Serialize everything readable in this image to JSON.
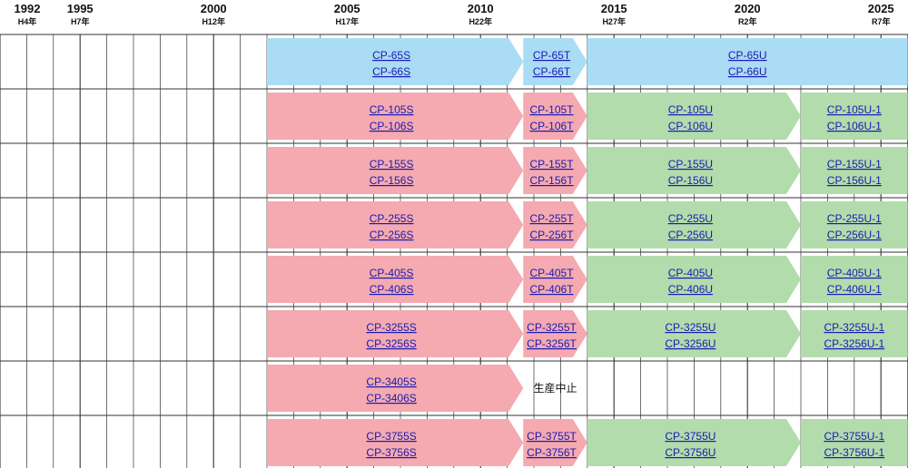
{
  "chart_data": {
    "type": "timeline",
    "x_axis": {
      "range": [
        1992,
        2026
      ],
      "ticks": [
        {
          "year": 1992,
          "label": "1992",
          "era": "H4年"
        },
        {
          "year": 1995,
          "label": "1995",
          "era": "H7年"
        },
        {
          "year": 2000,
          "label": "2000",
          "era": "H12年"
        },
        {
          "year": 2005,
          "label": "2005",
          "era": "H17年"
        },
        {
          "year": 2010,
          "label": "2010",
          "era": "H22年"
        },
        {
          "year": 2015,
          "label": "2015",
          "era": "H27年"
        },
        {
          "year": 2020,
          "label": "2020",
          "era": "R2年"
        },
        {
          "year": 2025,
          "label": "2025",
          "era": "R7年"
        }
      ]
    },
    "colors": {
      "series_65": "#aadcf6",
      "series_S_T": "#f4aab0",
      "series_U": "#b2dcac",
      "grid": "#333333",
      "link": "#1a1ab0"
    },
    "rows": [
      {
        "segments": [
          {
            "start": 2002.0,
            "end": 2011.6,
            "models": [
              "CP-65S",
              "CP-66S"
            ],
            "color": "#aadcf6"
          },
          {
            "start": 2011.6,
            "end": 2014.0,
            "models": [
              "CP-65T",
              "CP-66T"
            ],
            "color": "#aadcf6"
          },
          {
            "start": 2014.0,
            "end": 2026.0,
            "models": [
              "CP-65U",
              "CP-66U"
            ],
            "color": "#aadcf6"
          }
        ]
      },
      {
        "segments": [
          {
            "start": 2002.0,
            "end": 2011.6,
            "models": [
              "CP-105S",
              "CP-106S"
            ],
            "color": "#f4aab0"
          },
          {
            "start": 2011.6,
            "end": 2014.0,
            "models": [
              "CP-105T",
              "CP-106T"
            ],
            "color": "#f4aab0"
          },
          {
            "start": 2014.0,
            "end": 2022.0,
            "models": [
              "CP-105U",
              "CP-106U"
            ],
            "color": "#b2dcac"
          },
          {
            "start": 2022.0,
            "end": 2026.0,
            "models": [
              "CP-105U-1",
              "CP-106U-1"
            ],
            "color": "#b2dcac"
          }
        ]
      },
      {
        "segments": [
          {
            "start": 2002.0,
            "end": 2011.6,
            "models": [
              "CP-155S",
              "CP-156S"
            ],
            "color": "#f4aab0"
          },
          {
            "start": 2011.6,
            "end": 2014.0,
            "models": [
              "CP-155T",
              "CP-156T"
            ],
            "color": "#f4aab0"
          },
          {
            "start": 2014.0,
            "end": 2022.0,
            "models": [
              "CP-155U",
              "CP-156U"
            ],
            "color": "#b2dcac"
          },
          {
            "start": 2022.0,
            "end": 2026.0,
            "models": [
              "CP-155U-1",
              "CP-156U-1"
            ],
            "color": "#b2dcac"
          }
        ]
      },
      {
        "segments": [
          {
            "start": 2002.0,
            "end": 2011.6,
            "models": [
              "CP-255S",
              "CP-256S"
            ],
            "color": "#f4aab0"
          },
          {
            "start": 2011.6,
            "end": 2014.0,
            "models": [
              "CP-255T",
              "CP-256T"
            ],
            "color": "#f4aab0"
          },
          {
            "start": 2014.0,
            "end": 2022.0,
            "models": [
              "CP-255U",
              "CP-256U"
            ],
            "color": "#b2dcac"
          },
          {
            "start": 2022.0,
            "end": 2026.0,
            "models": [
              "CP-255U-1",
              "CP-256U-1"
            ],
            "color": "#b2dcac"
          }
        ]
      },
      {
        "segments": [
          {
            "start": 2002.0,
            "end": 2011.6,
            "models": [
              "CP-405S",
              "CP-406S"
            ],
            "color": "#f4aab0"
          },
          {
            "start": 2011.6,
            "end": 2014.0,
            "models": [
              "CP-405T",
              "CP-406T"
            ],
            "color": "#f4aab0"
          },
          {
            "start": 2014.0,
            "end": 2022.0,
            "models": [
              "CP-405U",
              "CP-406U"
            ],
            "color": "#b2dcac"
          },
          {
            "start": 2022.0,
            "end": 2026.0,
            "models": [
              "CP-405U-1",
              "CP-406U-1"
            ],
            "color": "#b2dcac"
          }
        ]
      },
      {
        "segments": [
          {
            "start": 2002.0,
            "end": 2011.6,
            "models": [
              "CP-3255S",
              "CP-3256S"
            ],
            "color": "#f4aab0"
          },
          {
            "start": 2011.6,
            "end": 2014.0,
            "models": [
              "CP-3255T",
              "CP-3256T"
            ],
            "color": "#f4aab0"
          },
          {
            "start": 2014.0,
            "end": 2022.0,
            "models": [
              "CP-3255U",
              "CP-3256U"
            ],
            "color": "#b2dcac"
          },
          {
            "start": 2022.0,
            "end": 2026.0,
            "models": [
              "CP-3255U-1",
              "CP-3256U-1"
            ],
            "color": "#b2dcac"
          }
        ]
      },
      {
        "segments": [
          {
            "start": 2002.0,
            "end": 2011.6,
            "models": [
              "CP-3405S",
              "CP-3406S"
            ],
            "color": "#f4aab0"
          }
        ],
        "note": {
          "year": 2012.8,
          "text": "生産中止"
        }
      },
      {
        "segments": [
          {
            "start": 2002.0,
            "end": 2011.6,
            "models": [
              "CP-3755S",
              "CP-3756S"
            ],
            "color": "#f4aab0"
          },
          {
            "start": 2011.6,
            "end": 2014.0,
            "models": [
              "CP-3755T",
              "CP-3756T"
            ],
            "color": "#f4aab0"
          },
          {
            "start": 2014.0,
            "end": 2022.0,
            "models": [
              "CP-3755U",
              "CP-3756U"
            ],
            "color": "#b2dcac"
          },
          {
            "start": 2022.0,
            "end": 2026.0,
            "models": [
              "CP-3755U-1",
              "CP-3756U-1"
            ],
            "color": "#b2dcac"
          }
        ]
      }
    ]
  }
}
